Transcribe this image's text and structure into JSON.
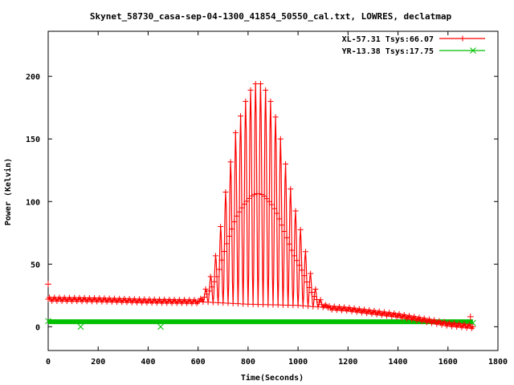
{
  "chart_data": {
    "type": "line",
    "title": "Skynet_58730_casa-sep-04-1300_41854_50550_cal.txt, LOWRES, declatmap",
    "xlabel": "Time(Seconds)",
    "ylabel": "Power (Kelvin)",
    "xlim": [
      0,
      1800
    ],
    "ylim": [
      -19,
      236
    ],
    "x_ticks": [
      0,
      200,
      400,
      600,
      800,
      1000,
      1200,
      1400,
      1600,
      1800
    ],
    "y_ticks": [
      0,
      50,
      100,
      150,
      200
    ],
    "grid": false,
    "legend_position": "top-right",
    "series": [
      {
        "name": "XL-57.31 Tsys:66.07",
        "color": "#ff0000",
        "marker": "plus",
        "scan_period": 20,
        "peak_interval": [
          600,
          1120
        ],
        "baseline": [
          [
            0,
            22
          ],
          [
            200,
            21.5
          ],
          [
            400,
            20.5
          ],
          [
            600,
            20
          ],
          [
            800,
            18
          ],
          [
            1000,
            17
          ],
          [
            1200,
            14
          ],
          [
            1400,
            9
          ],
          [
            1600,
            2
          ],
          [
            1700,
            0
          ]
        ],
        "peak_envelope": [
          [
            600,
            20
          ],
          [
            620,
            25
          ],
          [
            650,
            40
          ],
          [
            680,
            65
          ],
          [
            700,
            95
          ],
          [
            720,
            120
          ],
          [
            750,
            155
          ],
          [
            780,
            175
          ],
          [
            800,
            185
          ],
          [
            820,
            193
          ],
          [
            840,
            195
          ],
          [
            860,
            193
          ],
          [
            880,
            185
          ],
          [
            900,
            175
          ],
          [
            920,
            160
          ],
          [
            950,
            130
          ],
          [
            980,
            100
          ],
          [
            1000,
            85
          ],
          [
            1020,
            70
          ],
          [
            1040,
            50
          ],
          [
            1060,
            35
          ],
          [
            1080,
            25
          ],
          [
            1100,
            18
          ],
          [
            1120,
            17
          ]
        ],
        "outliers": [
          [
            0,
            34
          ],
          [
            1690,
            8
          ]
        ]
      },
      {
        "name": "YR-13.38 Tsys:17.75",
        "color": "#00c000",
        "marker": "x",
        "baseline": [
          [
            0,
            4
          ],
          [
            1700,
            4
          ]
        ],
        "outliers": [
          [
            0,
            4.5
          ],
          [
            130,
            0
          ],
          [
            450,
            0
          ],
          [
            1700,
            3
          ]
        ]
      }
    ]
  }
}
